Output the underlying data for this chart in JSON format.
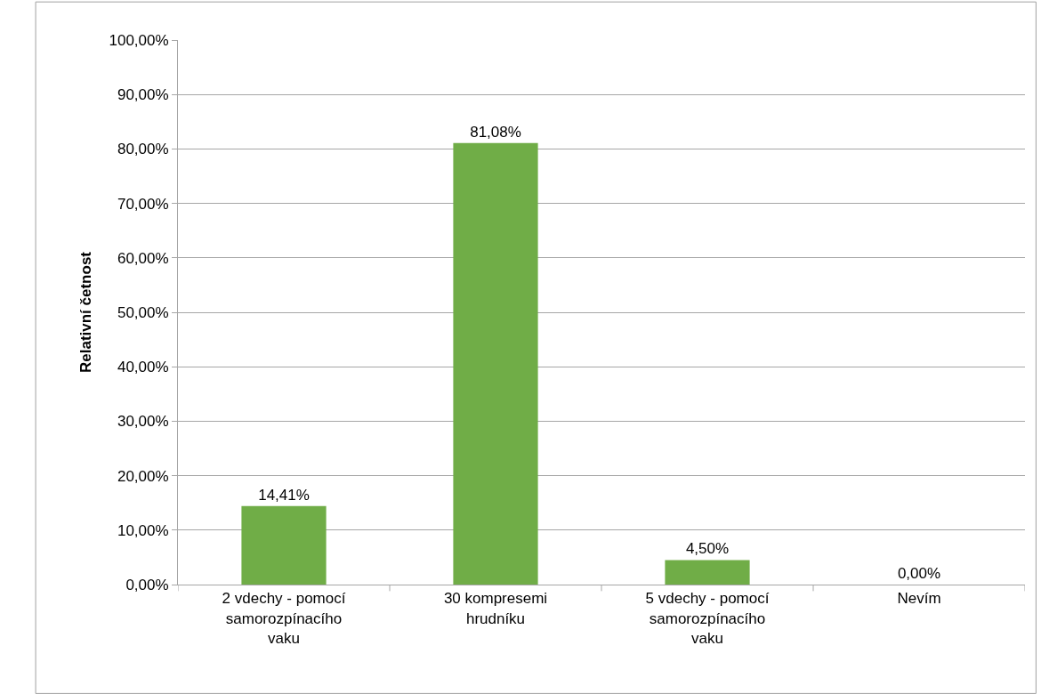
{
  "chart_data": {
    "type": "bar",
    "ylabel": "Relativní četnost",
    "categories": [
      "2 vdechy - pomocí samorozpínacího vaku",
      "30 kompresemi hrudníku",
      "5 vdechy - pomocí samorozpínacího vaku",
      "Nevím"
    ],
    "values": [
      14.41,
      81.08,
      4.5,
      0
    ],
    "value_labels": [
      "14,41%",
      "81,08%",
      "4,50%",
      "0,00%"
    ],
    "color": "#70ad47",
    "ylim": [
      0,
      100
    ],
    "yticks": [
      {
        "value": 0,
        "label": "0,00%"
      },
      {
        "value": 10,
        "label": "10,00%"
      },
      {
        "value": 20,
        "label": "20,00%"
      },
      {
        "value": 30,
        "label": "30,00%"
      },
      {
        "value": 40,
        "label": "40,00%"
      },
      {
        "value": 50,
        "label": "50,00%"
      },
      {
        "value": 60,
        "label": "60,00%"
      },
      {
        "value": 70,
        "label": "70,00%"
      },
      {
        "value": 80,
        "label": "80,00%"
      },
      {
        "value": 90,
        "label": "90,00%"
      },
      {
        "value": 100,
        "label": "100,00%"
      }
    ],
    "grid": "y"
  }
}
